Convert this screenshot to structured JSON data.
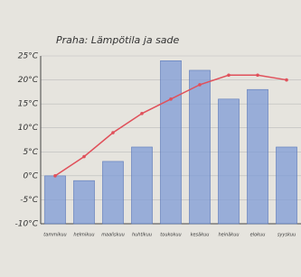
{
  "chart_data": {
    "type": "bar-line",
    "title": "Praha: Lämpötila ja sade",
    "categories": [
      "tammikuu",
      "helmikuu",
      "maaliskuu",
      "huhtikuu",
      "toukokuu",
      "kesäkuu",
      "heinäkuu",
      "elokuu",
      "syyskuu"
    ],
    "series": [
      {
        "type": "bar",
        "color": "#7d9bd6",
        "values": [
          0,
          -1,
          3,
          6,
          24,
          22,
          16,
          18,
          6
        ]
      },
      {
        "type": "line",
        "color": "#e0505a",
        "values": [
          0,
          4,
          9,
          13,
          16,
          19,
          21,
          21,
          20
        ]
      }
    ],
    "ylim": [
      -10,
      25
    ],
    "yticks": [
      {
        "value": -10,
        "label": "-10°C"
      },
      {
        "value": -5,
        "label": "-5°C"
      },
      {
        "value": 0,
        "label": "0°C"
      },
      {
        "value": 5,
        "label": "5°C"
      },
      {
        "value": 10,
        "label": "10°C"
      },
      {
        "value": 15,
        "label": "15°C"
      },
      {
        "value": 20,
        "label": "20°C"
      },
      {
        "value": 25,
        "label": "25°C"
      }
    ],
    "grid": true
  }
}
